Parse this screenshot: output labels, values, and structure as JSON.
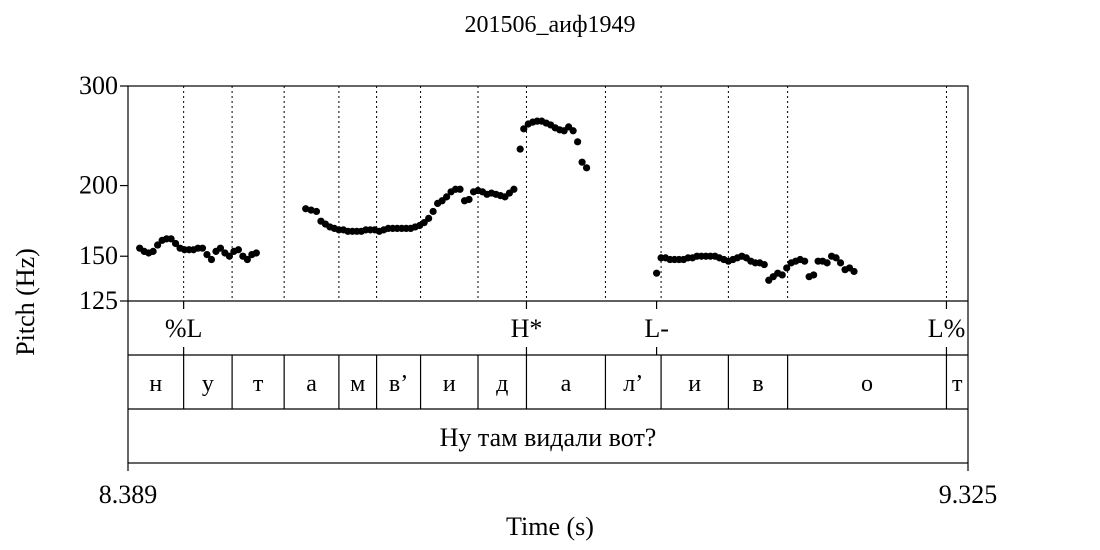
{
  "chart_data": {
    "type": "scatter",
    "title": "201506_аиф1949",
    "xlabel": "Time (s)",
    "ylabel": "Pitch (Hz)",
    "scale": "log",
    "xlim": [
      8.389,
      9.325
    ],
    "ylim": [
      125,
      300
    ],
    "yticks": [
      125,
      150,
      200,
      300
    ],
    "x_tick_labels": [
      "8.389",
      "9.325"
    ],
    "series": [
      {
        "values": [
          [
            8.402,
            155
          ],
          [
            8.407,
            153
          ],
          [
            8.412,
            152
          ],
          [
            8.417,
            153
          ],
          [
            8.422,
            157
          ],
          [
            8.427,
            160
          ],
          [
            8.432,
            161
          ],
          [
            8.437,
            161
          ],
          [
            8.442,
            158
          ],
          [
            8.447,
            155
          ],
          [
            8.452,
            154
          ],
          [
            8.457,
            154
          ],
          [
            8.462,
            154
          ],
          [
            8.467,
            155
          ],
          [
            8.472,
            155
          ],
          [
            8.477,
            151
          ],
          [
            8.482,
            148
          ],
          [
            8.487,
            153
          ],
          [
            8.492,
            155
          ],
          [
            8.497,
            152
          ],
          [
            8.502,
            150
          ],
          [
            8.507,
            153
          ],
          [
            8.512,
            154
          ],
          [
            8.517,
            150
          ],
          [
            8.522,
            148
          ],
          [
            8.527,
            151
          ],
          [
            8.532,
            152
          ],
          [
            8.587,
            182
          ],
          [
            8.593,
            181
          ],
          [
            8.599,
            180
          ],
          [
            8.604,
            173
          ],
          [
            8.609,
            171
          ],
          [
            8.614,
            169
          ],
          [
            8.619,
            168
          ],
          [
            8.624,
            167
          ],
          [
            8.629,
            167
          ],
          [
            8.634,
            166
          ],
          [
            8.639,
            166
          ],
          [
            8.644,
            166
          ],
          [
            8.649,
            166
          ],
          [
            8.654,
            167
          ],
          [
            8.659,
            167
          ],
          [
            8.664,
            167
          ],
          [
            8.669,
            166
          ],
          [
            8.674,
            167
          ],
          [
            8.679,
            168
          ],
          [
            8.684,
            168
          ],
          [
            8.689,
            168
          ],
          [
            8.694,
            168
          ],
          [
            8.699,
            168
          ],
          [
            8.704,
            168
          ],
          [
            8.709,
            169
          ],
          [
            8.714,
            170
          ],
          [
            8.719,
            172
          ],
          [
            8.724,
            175
          ],
          [
            8.729,
            180
          ],
          [
            8.734,
            186
          ],
          [
            8.739,
            188
          ],
          [
            8.744,
            191
          ],
          [
            8.749,
            195
          ],
          [
            8.754,
            197
          ],
          [
            8.759,
            197
          ],
          [
            8.764,
            188
          ],
          [
            8.769,
            189
          ],
          [
            8.774,
            195
          ],
          [
            8.779,
            196
          ],
          [
            8.784,
            195
          ],
          [
            8.789,
            193
          ],
          [
            8.794,
            194
          ],
          [
            8.799,
            193
          ],
          [
            8.804,
            192
          ],
          [
            8.809,
            191
          ],
          [
            8.814,
            194
          ],
          [
            8.819,
            197
          ],
          [
            8.826,
            232
          ],
          [
            8.83,
            252
          ],
          [
            8.835,
            257
          ],
          [
            8.84,
            259
          ],
          [
            8.845,
            260
          ],
          [
            8.85,
            260
          ],
          [
            8.855,
            258
          ],
          [
            8.86,
            256
          ],
          [
            8.865,
            253
          ],
          [
            8.87,
            251
          ],
          [
            8.875,
            250
          ],
          [
            8.88,
            254
          ],
          [
            8.885,
            250
          ],
          [
            8.89,
            239
          ],
          [
            8.895,
            220
          ],
          [
            8.9,
            215
          ],
          [
            8.978,
            140
          ],
          [
            8.983,
            149
          ],
          [
            8.988,
            149
          ],
          [
            8.993,
            148
          ],
          [
            8.998,
            148
          ],
          [
            9.003,
            148
          ],
          [
            9.008,
            148
          ],
          [
            9.013,
            149
          ],
          [
            9.018,
            149
          ],
          [
            9.023,
            150
          ],
          [
            9.028,
            150
          ],
          [
            9.033,
            150
          ],
          [
            9.038,
            150
          ],
          [
            9.043,
            150
          ],
          [
            9.048,
            149
          ],
          [
            9.053,
            148
          ],
          [
            9.058,
            147
          ],
          [
            9.063,
            148
          ],
          [
            9.068,
            149
          ],
          [
            9.073,
            150
          ],
          [
            9.078,
            149
          ],
          [
            9.083,
            147
          ],
          [
            9.088,
            146
          ],
          [
            9.093,
            146
          ],
          [
            9.098,
            145
          ],
          [
            9.103,
            136
          ],
          [
            9.108,
            138
          ],
          [
            9.113,
            140
          ],
          [
            9.118,
            139
          ],
          [
            9.123,
            143
          ],
          [
            9.128,
            146
          ],
          [
            9.133,
            147
          ],
          [
            9.138,
            148
          ],
          [
            9.143,
            147
          ],
          [
            9.148,
            138
          ],
          [
            9.153,
            139
          ],
          [
            9.158,
            147
          ],
          [
            9.163,
            147
          ],
          [
            9.168,
            146
          ],
          [
            9.173,
            150
          ],
          [
            9.178,
            149
          ],
          [
            9.183,
            146
          ],
          [
            9.188,
            142
          ],
          [
            9.193,
            143
          ],
          [
            9.198,
            141
          ]
        ]
      }
    ],
    "tones": [
      {
        "label": "%L",
        "t": 8.451
      },
      {
        "label": "H*",
        "t": 8.833
      },
      {
        "label": "L-",
        "t": 8.978
      },
      {
        "label": "L%",
        "t": 9.301
      }
    ],
    "segments": [
      "н",
      "у",
      "т",
      "а",
      "м",
      "в’",
      "и",
      "д",
      "а",
      "л’",
      "и",
      "в",
      "о",
      "т"
    ],
    "segment_boundaries": [
      8.389,
      8.451,
      8.505,
      8.563,
      8.624,
      8.666,
      8.715,
      8.779,
      8.833,
      8.921,
      8.983,
      9.058,
      9.124,
      9.301,
      9.325
    ],
    "utterance": "Ну там видали вот?"
  }
}
